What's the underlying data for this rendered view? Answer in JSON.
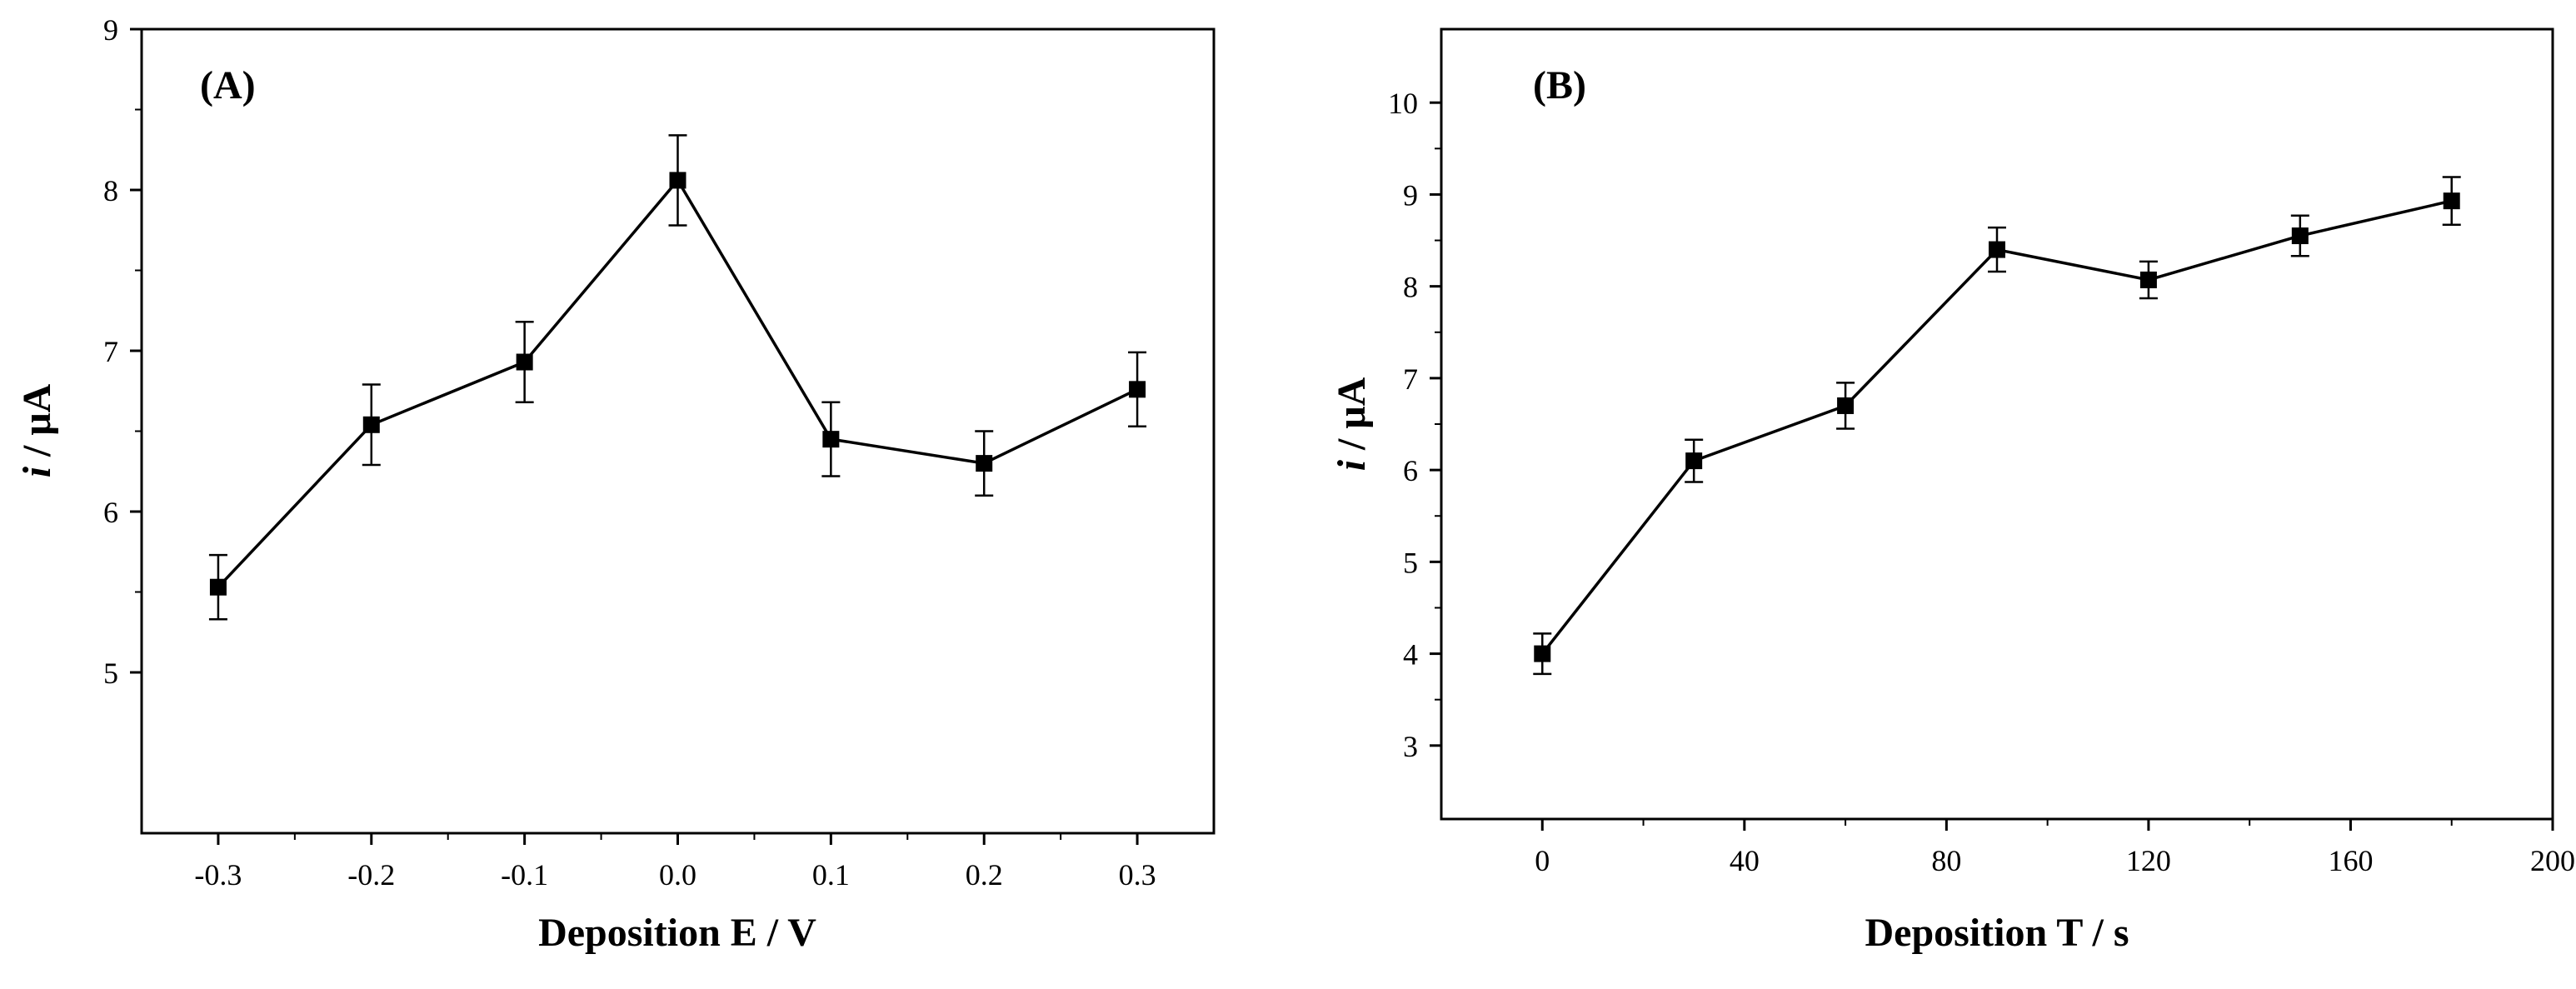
{
  "chart_data": [
    {
      "type": "line",
      "panel_label": "(A)",
      "title": "",
      "xlabel": "Deposition E / V",
      "ylabel_italic": "i",
      "ylabel_rest": " / μA",
      "xlim": [
        -0.35,
        0.35
      ],
      "ylim": [
        4.0,
        9.0
      ],
      "xticks": [
        -0.3,
        -0.2,
        -0.1,
        0.0,
        0.1,
        0.2,
        0.3
      ],
      "xtick_labels": [
        "-0.3",
        "-0.2",
        "-0.1",
        "0.0",
        "0.1",
        "0.2",
        "0.3"
      ],
      "yticks": [
        5,
        6,
        7,
        8,
        9
      ],
      "ytick_labels": [
        "5",
        "6",
        "7",
        "8",
        "9"
      ],
      "marker": "square",
      "x": [
        -0.3,
        -0.2,
        -0.1,
        0.0,
        0.1,
        0.2,
        0.3
      ],
      "y": [
        5.53,
        6.54,
        6.93,
        8.06,
        6.45,
        6.3,
        6.76
      ],
      "error": [
        0.2,
        0.25,
        0.25,
        0.28,
        0.23,
        0.2,
        0.23
      ]
    },
    {
      "type": "line",
      "panel_label": "(B)",
      "title": "",
      "xlabel": "Deposition T / s",
      "ylabel_italic": "i",
      "ylabel_rest": " / μA",
      "xlim": [
        -20,
        200
      ],
      "ylim": [
        2.2,
        10.8
      ],
      "xticks": [
        0,
        40,
        80,
        120,
        160,
        200
      ],
      "xtick_labels": [
        "0",
        "40",
        "80",
        "120",
        "160",
        "200"
      ],
      "yticks": [
        3,
        4,
        5,
        6,
        7,
        8,
        9,
        10
      ],
      "ytick_labels": [
        "3",
        "4",
        "5",
        "6",
        "7",
        "8",
        "9",
        "10"
      ],
      "marker": "square",
      "x": [
        0,
        30,
        60,
        90,
        120,
        150,
        180
      ],
      "y": [
        4.0,
        6.1,
        6.7,
        8.4,
        8.07,
        8.55,
        8.93
      ],
      "error": [
        0.22,
        0.23,
        0.25,
        0.24,
        0.2,
        0.22,
        0.26
      ]
    }
  ]
}
